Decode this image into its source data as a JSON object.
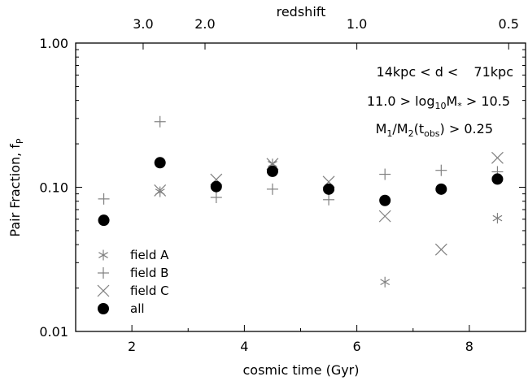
{
  "chart_data": {
    "type": "scatter",
    "xlabel": "cosmic time (Gyr)",
    "ylabel": "Pair Fraction, f",
    "ylabel_subscript": "P",
    "top_xlabel": "redshift",
    "xlim": [
      1,
      9
    ],
    "ylim": [
      0.01,
      1.0
    ],
    "yscale": "log",
    "x_ticks": [
      2,
      4,
      6,
      8
    ],
    "x_tick_labels": [
      "2",
      "4",
      "6",
      "8"
    ],
    "y_ticks": [
      0.01,
      0.1,
      1.0
    ],
    "y_tick_labels": [
      "0.01",
      "0.10",
      "1.00"
    ],
    "top_ticks": [
      {
        "label": "3.0",
        "x": 2.2
      },
      {
        "label": "2.0",
        "x": 3.3
      },
      {
        "label": "1.0",
        "x": 6.0
      },
      {
        "label": "0.5",
        "x": 8.7
      }
    ],
    "annotations": {
      "line1": {
        "a": "14kpc < d < ",
        "b": "71kpc"
      },
      "line2": {
        "a": "11.0 > ",
        "b": "log",
        "c": "10",
        "d": "M",
        "e": "*",
        "f": " > 10.5"
      },
      "line3": {
        "a": "M",
        "b": "1",
        "c": "/M",
        "d": "2",
        "e": "(t",
        "f": "obs",
        "g": ") > 0.25"
      }
    },
    "series": [
      {
        "name": "field A",
        "marker": "asterisk",
        "color": "#808080",
        "x": [
          2.5,
          4.5,
          6.5,
          8.5
        ],
        "y": [
          0.093,
          0.145,
          0.022,
          0.061
        ]
      },
      {
        "name": "field B",
        "marker": "plus",
        "color": "#808080",
        "x": [
          1.5,
          2.5,
          3.5,
          4.5,
          5.5,
          6.5,
          7.5,
          8.5
        ],
        "y": [
          0.083,
          0.285,
          0.085,
          0.097,
          0.082,
          0.123,
          0.131,
          0.128
        ]
      },
      {
        "name": "field C",
        "marker": "x",
        "color": "#808080",
        "x": [
          2.5,
          3.5,
          4.5,
          5.5,
          6.5,
          7.5,
          8.5
        ],
        "y": [
          0.095,
          0.113,
          0.145,
          0.109,
          0.063,
          0.037,
          0.16
        ]
      },
      {
        "name": "all",
        "marker": "circle",
        "color": "#000000",
        "x": [
          1.5,
          2.5,
          3.5,
          4.5,
          5.5,
          6.5,
          7.5,
          8.5
        ],
        "y": [
          0.059,
          0.148,
          0.101,
          0.129,
          0.097,
          0.081,
          0.097,
          0.114
        ]
      }
    ],
    "legend_position": "lower-left",
    "grid": false
  }
}
